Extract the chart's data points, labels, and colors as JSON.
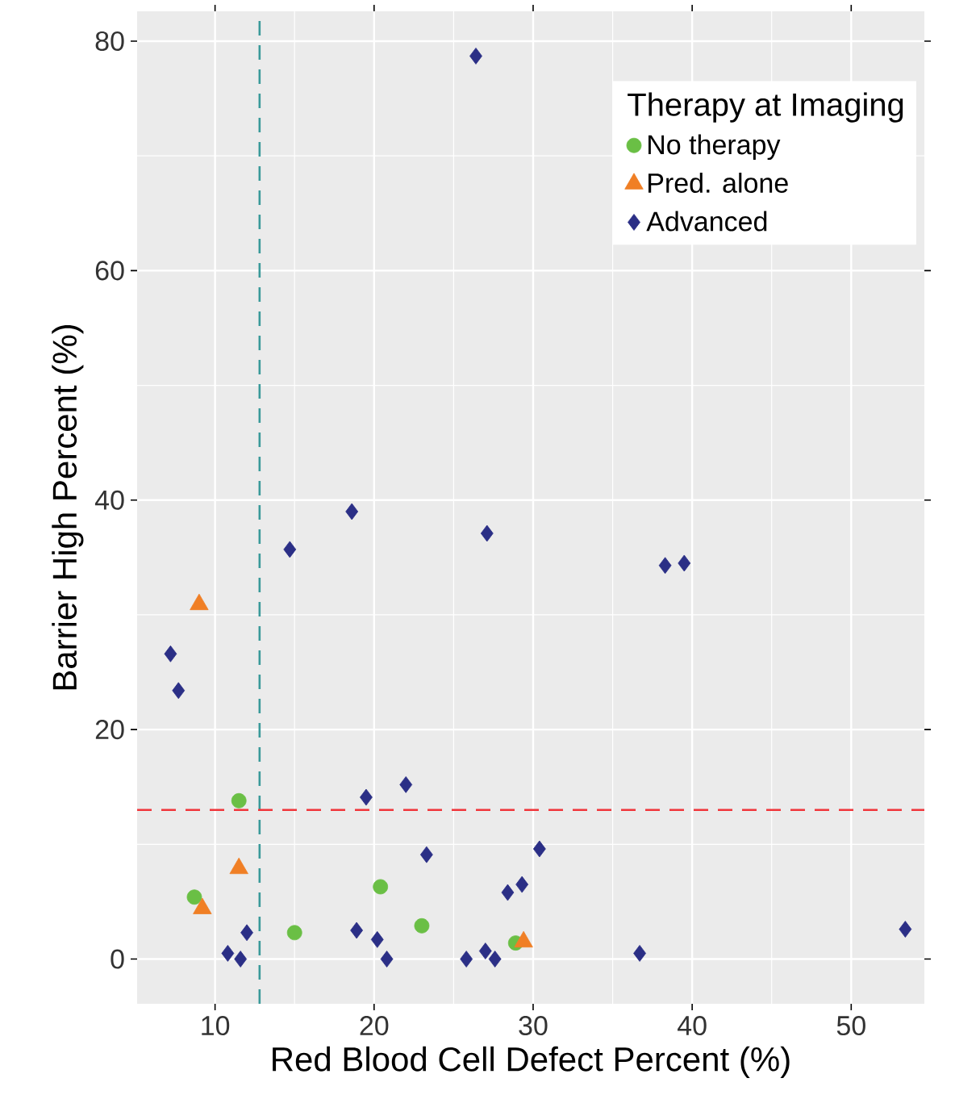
{
  "chart_data": {
    "type": "scatter",
    "xlabel": "Red Blood Cell Defect Percent (%)",
    "ylabel": "Barrier High Percent (%)",
    "legend_title": "Therapy at Imaging",
    "xlim": [
      5.1,
      54.6
    ],
    "ylim": [
      -3.9,
      82.6
    ],
    "xticks": [
      10,
      20,
      30,
      40,
      50
    ],
    "yticks": [
      0,
      20,
      40,
      60,
      80
    ],
    "grid": true,
    "legend": "top right",
    "ref_lines": [
      {
        "axis": "x",
        "value": 12.8,
        "color": "#3a9a9a",
        "line_style": "dashed"
      },
      {
        "axis": "y",
        "value": 13.0,
        "color": "#f0353a",
        "line_style": "dashed"
      }
    ],
    "series": [
      {
        "name": "No therapy",
        "color": "#6abf45",
        "marker": "circle",
        "x": [
          11.5,
          8.7,
          20.4,
          15.0,
          23.0,
          28.9
        ],
        "values": [
          13.8,
          5.4,
          6.3,
          2.3,
          2.9,
          1.4
        ]
      },
      {
        "name": "Pred. alone",
        "color": "#f07f25",
        "marker": "triangle",
        "x": [
          9.0,
          11.5,
          9.2,
          29.4
        ],
        "values": [
          30.9,
          7.9,
          4.4,
          1.5
        ]
      },
      {
        "name": "Advanced",
        "color": "#2b2f86",
        "marker": "diamond",
        "x": [
          26.4,
          18.6,
          27.1,
          14.7,
          38.3,
          39.5,
          7.2,
          7.7,
          19.5,
          22.0,
          23.3,
          30.4,
          28.4,
          29.3,
          12.0,
          18.9,
          20.2,
          20.8,
          10.8,
          11.6,
          25.8,
          27.0,
          27.6,
          36.7,
          53.4
        ],
        "values": [
          78.7,
          39.0,
          37.1,
          35.7,
          34.3,
          34.5,
          26.6,
          23.4,
          14.1,
          15.2,
          9.1,
          9.6,
          5.8,
          6.5,
          2.3,
          2.5,
          1.7,
          0,
          0.5,
          0,
          0,
          0.7,
          0,
          0.5,
          2.6
        ]
      }
    ]
  }
}
